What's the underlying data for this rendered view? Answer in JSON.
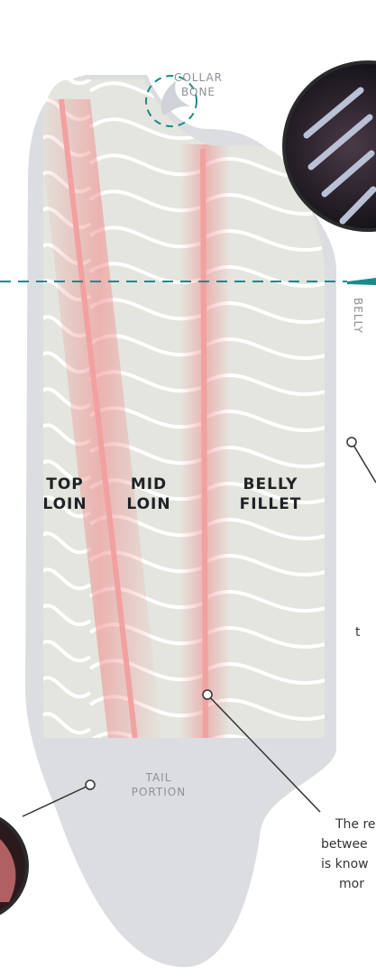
{
  "labels": {
    "collar_bone": [
      "COLLAR",
      "BONE"
    ],
    "belly": "BELLY",
    "top_loin": [
      "TOP",
      "LOIN"
    ],
    "mid_loin": [
      "MID",
      "LOIN"
    ],
    "belly_fillet": [
      "BELLY",
      "FILLET"
    ],
    "tail_portion": [
      "TAIL",
      "PORTION"
    ]
  },
  "callout_text": [
    "The re",
    "betwee",
    "is know",
    "mor"
  ],
  "fragment": "t"
}
